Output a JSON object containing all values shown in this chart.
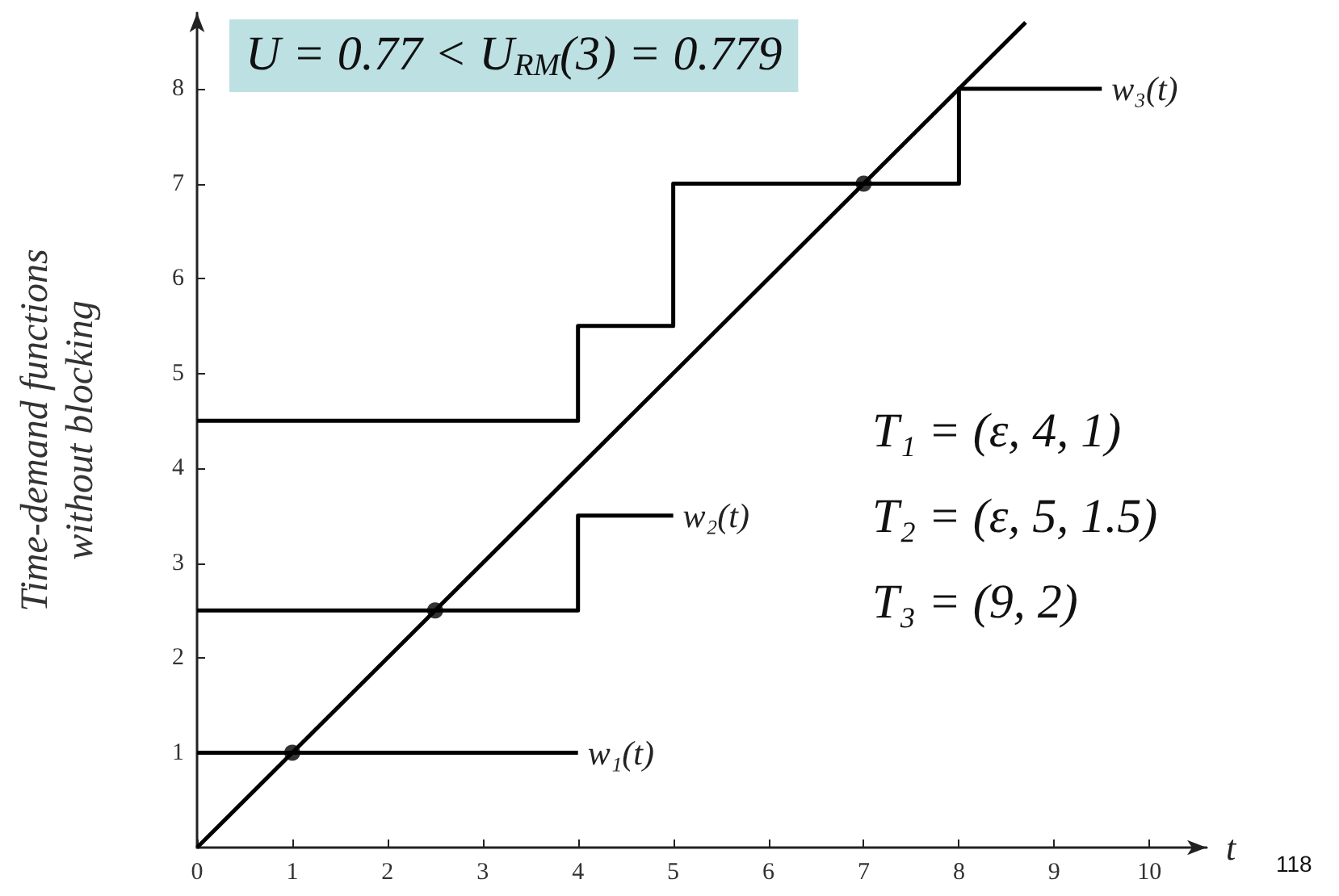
{
  "chart_data": {
    "type": "line",
    "xlabel": "t",
    "ylabel": "Time-demand functions\nwithout blocking",
    "xlim": [
      0,
      10.6
    ],
    "ylim": [
      0,
      8.8
    ],
    "xticks": [
      0,
      1,
      2,
      3,
      4,
      5,
      6,
      7,
      8,
      9,
      10
    ],
    "yticks": [
      1,
      2,
      3,
      4,
      5,
      6,
      7,
      8
    ],
    "grid": false,
    "legend": false,
    "line_style": "solid",
    "series": [
      {
        "x": [
          0,
          8.7
        ],
        "values": [
          0,
          8.7
        ],
        "color": "#000000",
        "marker": "none"
      },
      {
        "name": "w₁(t)",
        "x": [
          0,
          4
        ],
        "values": [
          1,
          1
        ],
        "color": "#000000",
        "marker": "none"
      },
      {
        "name": "w₂(t)",
        "type": "step",
        "x": [
          0,
          4,
          5
        ],
        "values": [
          2.5,
          3.5,
          3.5
        ],
        "color": "#000000",
        "marker": "none"
      },
      {
        "name": "w₃(t)",
        "type": "step",
        "x": [
          0,
          4,
          5,
          8,
          9.5
        ],
        "values": [
          4.5,
          5.5,
          7,
          8,
          8
        ],
        "color": "#000000",
        "marker": "none"
      },
      {
        "type": "scatter",
        "x": [
          1,
          2.5,
          7
        ],
        "values": [
          1,
          2.5,
          7
        ],
        "color": "#000000",
        "marker": "circle"
      }
    ],
    "annotations": [
      "U = 0.77 < U$_{RM}$(3) = 0.779",
      "T₁ = (ε, 4, 1)",
      "T₂ = (ε, 5, 1.5)",
      "T₃ = (9, 2)",
      "118"
    ]
  }
}
